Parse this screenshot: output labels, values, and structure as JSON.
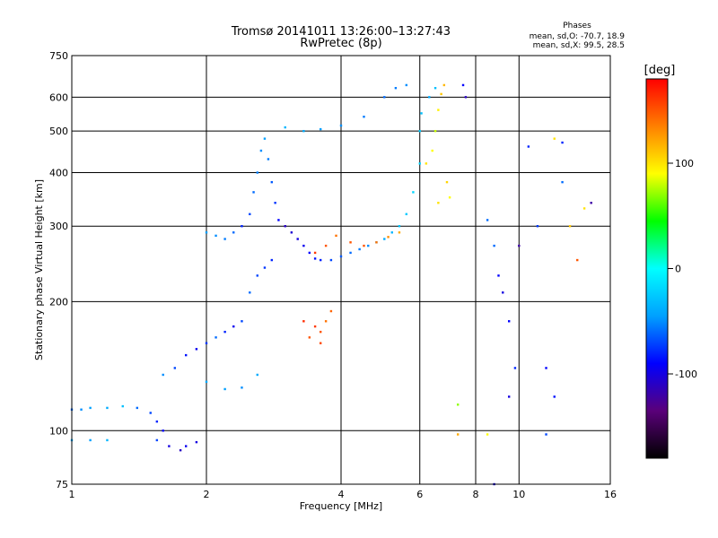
{
  "chart_data": {
    "type": "scatter",
    "title": "Tromsø 20141011 13:26:00–13:27:43",
    "subtitle": "RwPretec (8p)",
    "xlabel": "Frequency [MHz]",
    "ylabel": "Stationary phase Virtual Height [km]",
    "x_scale": "log",
    "y_scale": "log",
    "xlim": [
      1,
      16
    ],
    "ylim": [
      75,
      750
    ],
    "x_ticks": [
      1,
      2,
      4,
      6,
      8,
      10,
      16
    ],
    "y_ticks": [
      75,
      100,
      200,
      300,
      400,
      500,
      600,
      750
    ],
    "grid": true,
    "stats": {
      "heading": "Phases",
      "line1": "mean, sd,O: -70.7, 18.9",
      "line2": "mean, sd,X:  99.5, 28.5"
    },
    "colorbar": {
      "label": "[deg]",
      "range": [
        -180,
        180
      ],
      "ticks": [
        100,
        0,
        -100
      ],
      "colormap": [
        "#000000",
        "#5a007a",
        "#0000ff",
        "#00a0ff",
        "#00ffff",
        "#00ff00",
        "#ffff00",
        "#ff8000",
        "#ff0000"
      ]
    },
    "series": [
      {
        "description_free": true,
        "points": [
          [
            1.0,
            112,
            -60
          ],
          [
            1.05,
            112,
            -50
          ],
          [
            1.1,
            113,
            -45
          ],
          [
            1.2,
            113,
            -40
          ],
          [
            1.3,
            114,
            -30
          ],
          [
            1.0,
            95,
            -40
          ],
          [
            1.1,
            95,
            -45
          ],
          [
            1.2,
            95,
            -35
          ],
          [
            1.4,
            113,
            -60
          ],
          [
            1.5,
            110,
            -70
          ],
          [
            1.55,
            105,
            -80
          ],
          [
            1.6,
            100,
            -90
          ],
          [
            1.55,
            95,
            -70
          ],
          [
            1.65,
            92,
            -100
          ],
          [
            1.75,
            90,
            -110
          ],
          [
            1.8,
            92,
            -95
          ],
          [
            1.9,
            94,
            -100
          ],
          [
            1.6,
            135,
            -50
          ],
          [
            1.7,
            140,
            -70
          ],
          [
            1.8,
            150,
            -85
          ],
          [
            1.9,
            155,
            -95
          ],
          [
            2.0,
            160,
            -75
          ],
          [
            2.1,
            165,
            -60
          ],
          [
            2.2,
            170,
            -80
          ],
          [
            2.3,
            175,
            -95
          ],
          [
            2.4,
            180,
            -70
          ],
          [
            2.0,
            130,
            -40
          ],
          [
            2.2,
            125,
            -45
          ],
          [
            2.4,
            126,
            -50
          ],
          [
            2.6,
            135,
            -40
          ],
          [
            2.5,
            210,
            -60
          ],
          [
            2.6,
            230,
            -70
          ],
          [
            2.7,
            240,
            -75
          ],
          [
            2.8,
            250,
            -80
          ],
          [
            2.0,
            290,
            -45
          ],
          [
            2.1,
            285,
            -50
          ],
          [
            2.2,
            280,
            -55
          ],
          [
            2.3,
            290,
            -60
          ],
          [
            2.4,
            300,
            -80
          ],
          [
            2.5,
            320,
            -70
          ],
          [
            2.55,
            360,
            -60
          ],
          [
            2.6,
            400,
            -55
          ],
          [
            2.65,
            450,
            -50
          ],
          [
            2.7,
            480,
            -45
          ],
          [
            2.75,
            430,
            -55
          ],
          [
            2.8,
            380,
            -65
          ],
          [
            2.85,
            340,
            -75
          ],
          [
            2.9,
            310,
            -90
          ],
          [
            3.0,
            300,
            -110
          ],
          [
            3.1,
            290,
            -105
          ],
          [
            3.2,
            280,
            -100
          ],
          [
            3.3,
            270,
            -95
          ],
          [
            3.4,
            260,
            -90
          ],
          [
            3.5,
            252,
            -85
          ],
          [
            3.6,
            250,
            -80
          ],
          [
            3.8,
            250,
            -70
          ],
          [
            4.0,
            255,
            -65
          ],
          [
            4.2,
            260,
            -60
          ],
          [
            4.4,
            265,
            -55
          ],
          [
            4.6,
            270,
            -50
          ],
          [
            4.8,
            275,
            -45
          ],
          [
            5.0,
            280,
            -40
          ],
          [
            5.2,
            290,
            -35
          ],
          [
            5.4,
            300,
            -30
          ],
          [
            5.6,
            320,
            -25
          ],
          [
            5.8,
            360,
            -20
          ],
          [
            6.0,
            420,
            -20
          ],
          [
            6.0,
            500,
            -25
          ],
          [
            6.05,
            550,
            -30
          ],
          [
            3.5,
            260,
            160
          ],
          [
            3.7,
            270,
            150
          ],
          [
            3.9,
            285,
            140
          ],
          [
            4.2,
            275,
            150
          ],
          [
            4.5,
            270,
            150
          ],
          [
            4.8,
            275,
            140
          ],
          [
            5.1,
            283,
            130
          ],
          [
            5.4,
            290,
            120
          ],
          [
            3.3,
            180,
            165
          ],
          [
            3.5,
            175,
            160
          ],
          [
            3.6,
            170,
            150
          ],
          [
            3.7,
            180,
            140
          ],
          [
            3.8,
            190,
            145
          ],
          [
            3.4,
            165,
            150
          ],
          [
            3.6,
            160,
            155
          ],
          [
            3.0,
            510,
            -35
          ],
          [
            3.3,
            500,
            -40
          ],
          [
            3.6,
            505,
            -45
          ],
          [
            4.0,
            515,
            -50
          ],
          [
            4.5,
            540,
            -55
          ],
          [
            5.0,
            600,
            -60
          ],
          [
            5.3,
            630,
            -55
          ],
          [
            5.6,
            640,
            -50
          ],
          [
            6.2,
            420,
            100
          ],
          [
            6.4,
            450,
            90
          ],
          [
            6.5,
            500,
            80
          ],
          [
            6.6,
            560,
            95
          ],
          [
            6.7,
            610,
            110
          ],
          [
            6.8,
            640,
            115
          ],
          [
            6.9,
            380,
            105
          ],
          [
            7.0,
            350,
            90
          ],
          [
            6.6,
            340,
            100
          ],
          [
            6.3,
            600,
            -40
          ],
          [
            6.5,
            630,
            -30
          ],
          [
            7.5,
            640,
            -90
          ],
          [
            7.6,
            600,
            -110
          ],
          [
            8.5,
            310,
            -60
          ],
          [
            8.8,
            270,
            -60
          ],
          [
            9.0,
            230,
            -90
          ],
          [
            9.2,
            210,
            -100
          ],
          [
            9.5,
            180,
            -90
          ],
          [
            9.8,
            140,
            -80
          ],
          [
            9.5,
            120,
            -100
          ],
          [
            11.0,
            300,
            -75
          ],
          [
            11.5,
            140,
            -90
          ],
          [
            12.0,
            120,
            -85
          ],
          [
            12.5,
            380,
            -60
          ],
          [
            12.0,
            480,
            100
          ],
          [
            13.0,
            300,
            110
          ],
          [
            14.0,
            330,
            100
          ],
          [
            13.5,
            250,
            150
          ],
          [
            14.5,
            340,
            -120
          ],
          [
            10.0,
            270,
            -120
          ],
          [
            10.5,
            460,
            -80
          ],
          [
            12.5,
            470,
            -80
          ],
          [
            7.3,
            115,
            70
          ],
          [
            7.3,
            98,
            120
          ],
          [
            8.5,
            98,
            90
          ],
          [
            8.8,
            75,
            -100
          ],
          [
            11.5,
            98,
            -70
          ]
        ]
      }
    ]
  }
}
